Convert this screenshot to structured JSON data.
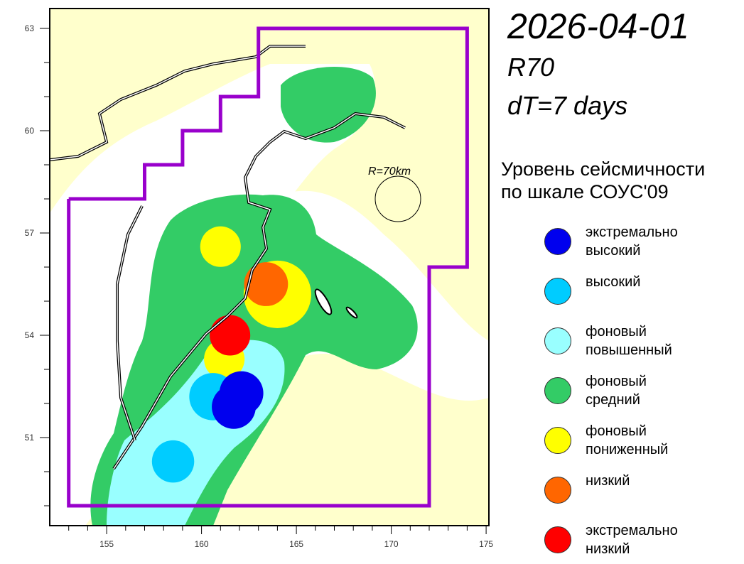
{
  "header": {
    "date": "2026-04-01",
    "radius_code": "R70",
    "window": "dT=7 days"
  },
  "legend": {
    "title_line1": "Уровень сейсмичности",
    "title_line2": "по шкале СОУС'09",
    "items": [
      {
        "label": "экстремально\nвысокий",
        "color": "#0000ee"
      },
      {
        "label": "высокий",
        "color": "#00ccff"
      },
      {
        "label": "фоновый\nповышенный",
        "color": "#99ffff"
      },
      {
        "label": "фоновый\nсредний",
        "color": "#33cc66"
      },
      {
        "label": "фоновый\nпониженный",
        "color": "#ffff00"
      },
      {
        "label": "низкий",
        "color": "#ff6600"
      },
      {
        "label": "экстремально\nнизкий",
        "color": "#ff0000"
      }
    ]
  },
  "map": {
    "radius_label": "R=70km",
    "region_color": "#9900cc",
    "background_color": "#ffffcc",
    "x_ticks": [
      155,
      160,
      165,
      170,
      175
    ],
    "y_ticks": [
      63,
      60,
      57,
      54,
      51
    ],
    "lon_range": [
      152,
      175
    ],
    "lat_range": [
      48.4,
      63.6
    ],
    "region_boundary": [
      [
        153,
        58
      ],
      [
        157,
        58
      ],
      [
        157,
        59
      ],
      [
        159,
        59
      ],
      [
        159,
        60
      ],
      [
        161,
        60
      ],
      [
        161,
        61
      ],
      [
        163,
        61
      ],
      [
        163,
        63
      ],
      [
        174,
        63
      ],
      [
        174,
        56
      ],
      [
        172,
        56
      ],
      [
        172,
        49
      ],
      [
        153,
        49
      ]
    ],
    "zones": [
      {
        "lon": 161.0,
        "lat": 56.6,
        "r_km": 120,
        "level": 4
      },
      {
        "lon": 164.0,
        "lat": 55.2,
        "r_km": 200,
        "level": 4
      },
      {
        "lon": 163.4,
        "lat": 55.5,
        "r_km": 130,
        "level": 5
      },
      {
        "lon": 161.2,
        "lat": 53.3,
        "r_km": 120,
        "level": 4
      },
      {
        "lon": 161.5,
        "lat": 54.0,
        "r_km": 120,
        "level": 6
      },
      {
        "lon": 160.6,
        "lat": 52.2,
        "r_km": 140,
        "level": 1
      },
      {
        "lon": 162.1,
        "lat": 52.3,
        "r_km": 130,
        "level": 0
      },
      {
        "lon": 161.7,
        "lat": 51.9,
        "r_km": 130,
        "level": 0
      },
      {
        "lon": 158.5,
        "lat": 50.3,
        "r_km": 125,
        "level": 1
      }
    ]
  }
}
